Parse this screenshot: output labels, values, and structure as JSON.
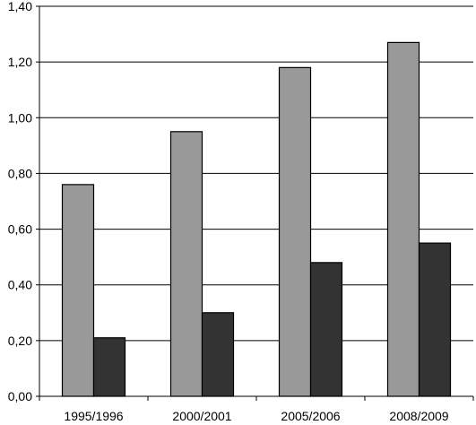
{
  "chart_data": {
    "type": "bar",
    "title": "",
    "xlabel": "",
    "ylabel": "",
    "categories": [
      "1995/1996",
      "2000/2001",
      "2005/2006",
      "2008/2009"
    ],
    "series": [
      {
        "values": [
          0.76,
          0.95,
          1.18,
          1.27
        ],
        "color": "#999999"
      },
      {
        "values": [
          0.21,
          0.3,
          0.48,
          0.55
        ],
        "color": "#333333"
      }
    ],
    "ylim": [
      0,
      1.4
    ],
    "yticks": [
      "0,00",
      "0,20",
      "0,40",
      "0,60",
      "0,80",
      "1,00",
      "1,20",
      "1,40"
    ],
    "grid": true,
    "legend": "none"
  }
}
